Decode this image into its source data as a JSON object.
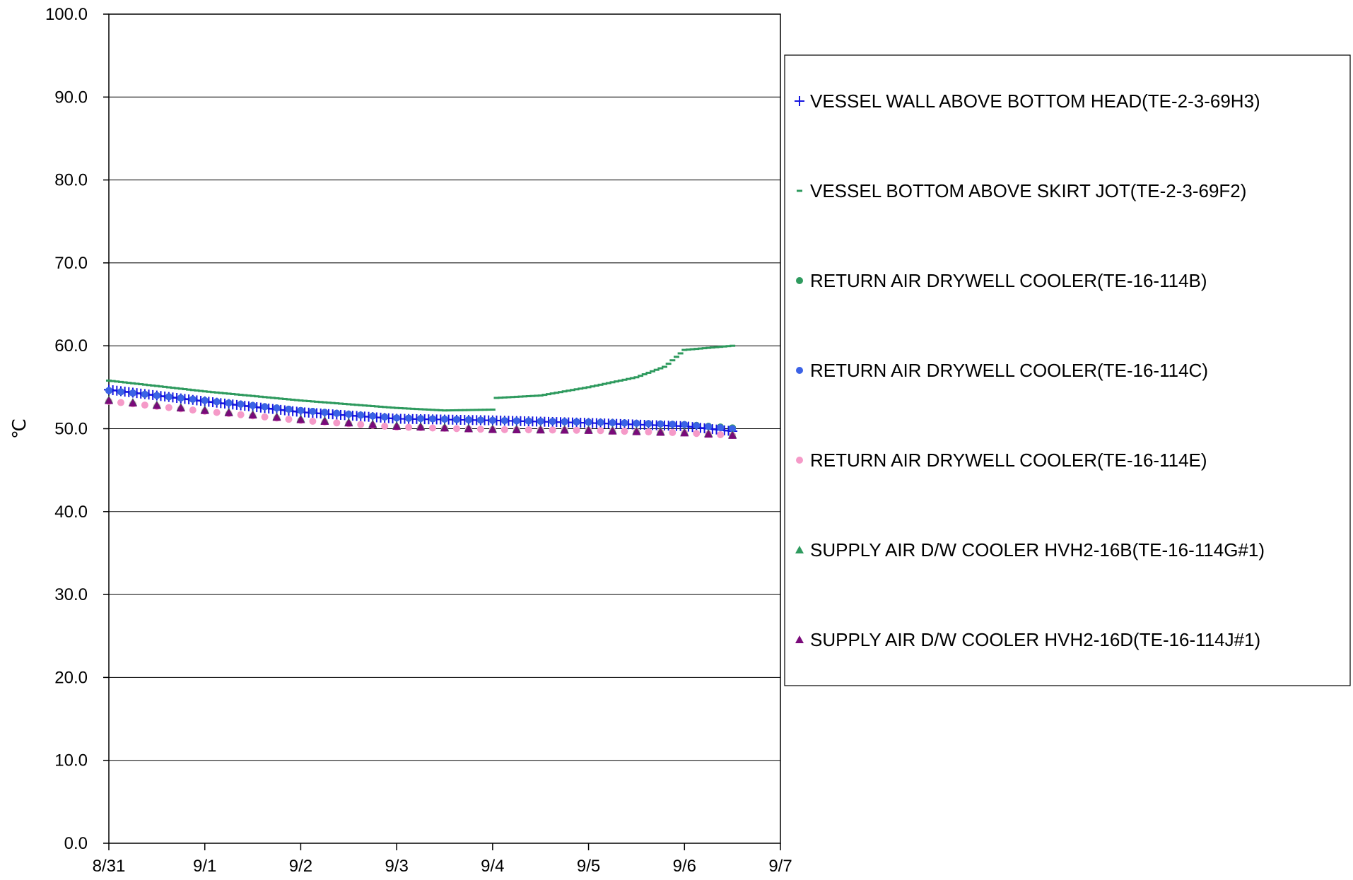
{
  "chart_data": {
    "type": "scatter",
    "title": "",
    "xlabel": "",
    "ylabel": "℃",
    "ylim": [
      0,
      100
    ],
    "yticks": [
      "0.0",
      "10.0",
      "20.0",
      "30.0",
      "40.0",
      "50.0",
      "60.0",
      "70.0",
      "80.0",
      "90.0",
      "100.0"
    ],
    "xlim": [
      "8/31",
      "9/7"
    ],
    "xticks": [
      "8/31",
      "9/1",
      "9/2",
      "9/3",
      "9/4",
      "9/5",
      "9/6",
      "9/7"
    ],
    "grid": "horizontal",
    "legend_position": "right",
    "colors": {
      "vessel_wall": "#1515e0",
      "vessel_bottom": "#2e9a5e",
      "return_b": "#2e9a5e",
      "return_c": "#3b62e6",
      "return_e": "#f59ac8",
      "supply_b": "#2e9a5e",
      "supply_d": "#7a0a7a"
    },
    "series": [
      {
        "name": "VESSEL WALL ABOVE BOTTOM HEAD(TE-2-3-69H3)",
        "marker": "plus",
        "color_key": "vessel_wall",
        "x": [
          "8/31",
          "9/1",
          "9/2",
          "9/3",
          "9/4",
          "9/5",
          "9/6",
          "9/6.5"
        ],
        "y": [
          54.7,
          53.3,
          52.0,
          51.2,
          51.0,
          50.7,
          50.3,
          49.7
        ]
      },
      {
        "name": "VESSEL BOTTOM ABOVE SKIRT JOT(TE-2-3-69F2)",
        "marker": "dash",
        "color_key": "vessel_bottom",
        "x": [
          "8/31",
          "9/1",
          "9/2",
          "9/3",
          "9/3.5",
          "9/4",
          "9/4.02",
          "9/4.5",
          "9/5",
          "9/5.5",
          "9/5.8",
          "9/6",
          "9/6.5"
        ],
        "y": [
          55.8,
          54.5,
          53.4,
          52.5,
          52.2,
          52.3,
          53.7,
          54.0,
          55.0,
          56.2,
          57.5,
          59.5,
          60.0
        ]
      },
      {
        "name": "RETURN AIR DRYWELL COOLER(TE-16-114B)",
        "marker": "circle",
        "color_key": "return_b",
        "x": [
          "8/31",
          "9/1",
          "9/2",
          "9/3",
          "9/4",
          "9/5",
          "9/6",
          "9/6.5"
        ],
        "y": [
          54.6,
          53.4,
          52.2,
          51.3,
          51.0,
          50.8,
          50.5,
          50.1
        ]
      },
      {
        "name": "RETURN AIR DRYWELL COOLER(TE-16-114C)",
        "marker": "circle",
        "color_key": "return_c",
        "x": [
          "8/31",
          "9/1",
          "9/2",
          "9/3",
          "9/4",
          "9/5",
          "9/6",
          "9/6.5"
        ],
        "y": [
          54.6,
          53.4,
          52.2,
          51.3,
          51.0,
          50.8,
          50.5,
          50.0
        ]
      },
      {
        "name": "RETURN AIR DRYWELL COOLER(TE-16-114E)",
        "marker": "circle",
        "color_key": "return_e",
        "x": [
          "8/31",
          "9/1",
          "9/2",
          "9/3",
          "9/4",
          "9/5",
          "9/6",
          "9/6.5"
        ],
        "y": [
          53.3,
          52.1,
          51.0,
          50.2,
          49.9,
          49.8,
          49.5,
          49.2
        ]
      },
      {
        "name": "SUPPLY AIR D/W COOLER HVH2-16B(TE-16-114G#1)",
        "marker": "triangle",
        "color_key": "supply_b",
        "x": [
          "8/31",
          "9/1",
          "9/2",
          "9/3",
          "9/4",
          "9/5",
          "9/6",
          "9/6.5"
        ],
        "y": [
          53.5,
          52.3,
          51.2,
          50.4,
          50.0,
          49.9,
          49.6,
          49.3
        ]
      },
      {
        "name": "SUPPLY AIR D/W COOLER HVH2-16D(TE-16-114J#1)",
        "marker": "triangle",
        "color_key": "supply_d",
        "x": [
          "8/31",
          "9/1",
          "9/2",
          "9/3",
          "9/4",
          "9/5",
          "9/6",
          "9/6.5"
        ],
        "y": [
          53.4,
          52.2,
          51.1,
          50.3,
          49.9,
          49.8,
          49.5,
          49.2
        ]
      }
    ]
  }
}
